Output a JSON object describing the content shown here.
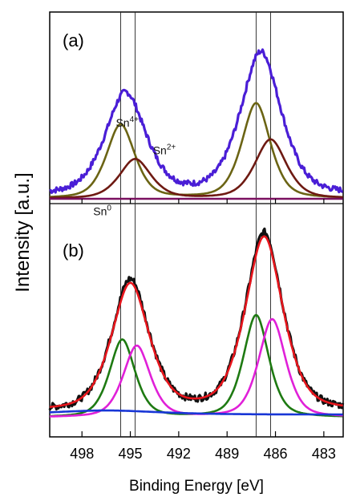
{
  "chart_data": [
    {
      "type": "line",
      "panel_label": "(a)",
      "x_reversed": true,
      "xlim": [
        500.0,
        481.8
      ],
      "ylim": [
        0,
        1.0
      ],
      "reference_lines_x": [
        495.6,
        494.7,
        487.2,
        486.3
      ],
      "annotations": [
        {
          "base": "Sn",
          "sup": "4+",
          "x": 495.9,
          "y": 0.44
        },
        {
          "base": "Sn",
          "sup": "2+",
          "x": 493.6,
          "y": 0.27
        },
        {
          "base": "Sn",
          "sup": "0",
          "x": 497.3,
          "y": -0.1
        }
      ],
      "series": [
        {
          "role": "measured-envelope",
          "color": "#4a1ed6",
          "peaks": [
            {
              "center": 495.3,
              "amp": 0.62,
              "width": 1.35
            },
            {
              "center": 486.9,
              "amp": 0.87,
              "width": 1.35
            }
          ],
          "baseline": 0.02
        },
        {
          "role": "component",
          "color": "#6b6414",
          "peaks": [
            {
              "center": 495.6,
              "amp": 0.45,
              "width": 0.95
            },
            {
              "center": 487.2,
              "amp": 0.58,
              "width": 0.95
            }
          ],
          "baseline": 0.0
        },
        {
          "role": "component",
          "color": "#6e1a12",
          "peaks": [
            {
              "center": 494.7,
              "amp": 0.24,
              "width": 1.05
            },
            {
              "center": 486.3,
              "amp": 0.36,
              "width": 1.05
            }
          ],
          "baseline": 0.0
        },
        {
          "role": "component",
          "color": "#7a1060",
          "peaks": [],
          "baseline": 0.0
        }
      ]
    },
    {
      "type": "line",
      "panel_label": "(b)",
      "x_reversed": true,
      "xlim": [
        500.0,
        481.8
      ],
      "ylim": [
        0,
        1.0
      ],
      "reference_lines_x": [
        495.6,
        494.7,
        487.2,
        486.3
      ],
      "annotations": [],
      "series": [
        {
          "role": "measured-data",
          "color": "#111111",
          "peaks": [
            {
              "center": 495.0,
              "amp": 0.64,
              "width": 1.25
            },
            {
              "center": 486.7,
              "amp": 0.87,
              "width": 1.25
            }
          ],
          "baseline": 0.03
        },
        {
          "role": "fit-envelope",
          "color": "#e8151c",
          "peaks": [
            {
              "center": 495.0,
              "amp": 0.62,
              "width": 1.25
            },
            {
              "center": 486.7,
              "amp": 0.85,
              "width": 1.25
            }
          ],
          "baseline": 0.03
        },
        {
          "role": "component",
          "color": "#1e7a12",
          "peaks": [
            {
              "center": 495.5,
              "amp": 0.38,
              "width": 0.85
            },
            {
              "center": 487.2,
              "amp": 0.5,
              "width": 0.85
            }
          ],
          "baseline": 0.0
        },
        {
          "role": "component",
          "color": "#e020d8",
          "peaks": [
            {
              "center": 494.6,
              "amp": 0.35,
              "width": 0.9
            },
            {
              "center": 486.2,
              "amp": 0.48,
              "width": 0.9
            }
          ],
          "baseline": 0.0
        },
        {
          "role": "component",
          "color": "#1836d6",
          "peaks": [],
          "baseline": 0.015,
          "bump": {
            "center": 496.5,
            "amp": 0.02,
            "width": 3.5
          }
        }
      ]
    }
  ],
  "axes": {
    "xlabel": "Binding Energy [eV]",
    "ylabel": "Intensity [a.u.]",
    "x_ticks": [
      "498",
      "495",
      "492",
      "489",
      "486",
      "483"
    ],
    "x_tick_values": [
      498,
      495,
      492,
      489,
      486,
      483
    ]
  }
}
